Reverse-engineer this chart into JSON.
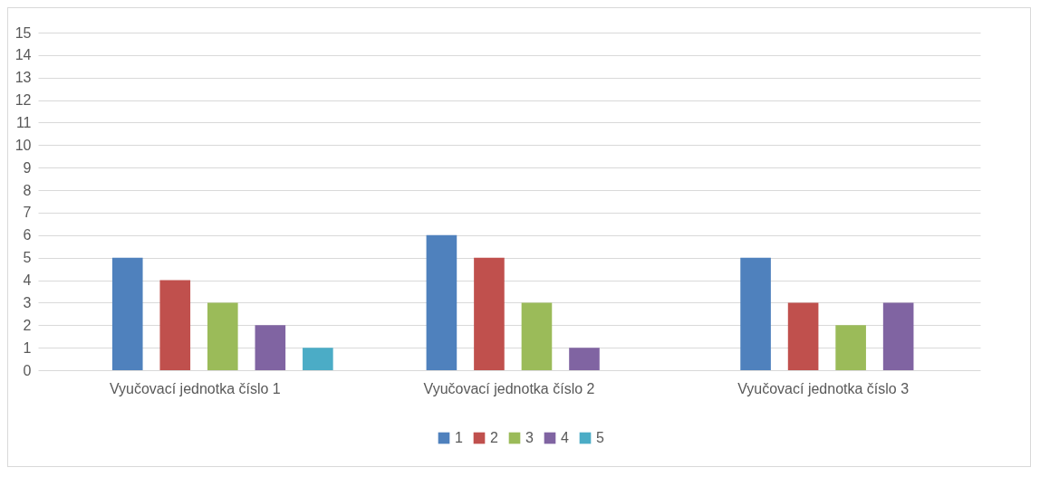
{
  "chart_data": {
    "type": "bar",
    "categories": [
      "Vyučovací jednotka číslo 1",
      "Vyučovací jednotka číslo 2",
      "Vyučovací jednotka číslo 3"
    ],
    "series": [
      {
        "name": "1",
        "color": "#4f81bd",
        "values": [
          5,
          6,
          5
        ]
      },
      {
        "name": "2",
        "color": "#c0504d",
        "values": [
          4,
          5,
          3
        ]
      },
      {
        "name": "3",
        "color": "#9bbb59",
        "values": [
          3,
          3,
          2
        ]
      },
      {
        "name": "4",
        "color": "#8064a2",
        "values": [
          2,
          1,
          3
        ]
      },
      {
        "name": "5",
        "color": "#4bacc6",
        "values": [
          1,
          0,
          0
        ]
      }
    ],
    "ylim": [
      0,
      15
    ],
    "yticks": [
      0,
      1,
      2,
      3,
      4,
      5,
      6,
      7,
      8,
      9,
      10,
      11,
      12,
      13,
      14,
      15
    ],
    "grid": "y",
    "legend": "bottom"
  }
}
